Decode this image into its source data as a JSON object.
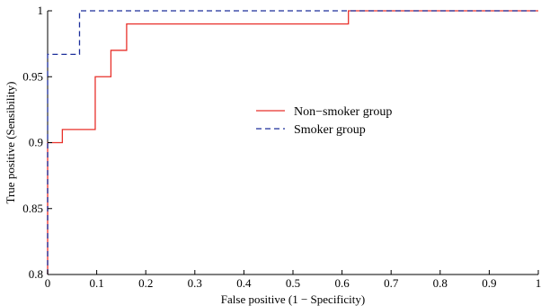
{
  "chart_data": {
    "type": "line",
    "title": "",
    "xlabel": "False positive (1 − Specificity)",
    "ylabel": "True positive (Sensibility)",
    "xlim": [
      0,
      1
    ],
    "ylim": [
      0.8,
      1
    ],
    "xticks": [
      0,
      0.1,
      0.2,
      0.3,
      0.4,
      0.5,
      0.6,
      0.7,
      0.8,
      0.9,
      1
    ],
    "xtick_labels": [
      "0",
      "0.1",
      "0.2",
      "0.3",
      "0.4",
      "0.5",
      "0.6",
      "0.7",
      "0.8",
      "0.9",
      "1"
    ],
    "yticks": [
      0.8,
      0.85,
      0.9,
      0.95,
      1
    ],
    "ytick_labels": [
      "0.8",
      "0.85",
      "0.9",
      "0.95",
      "1"
    ],
    "grid": false,
    "legend_position": "center",
    "series": [
      {
        "name": "Non−smoker group",
        "color": "#e8302a",
        "dash": "solid",
        "x": [
          0,
          0,
          0.03,
          0.03,
          0.097,
          0.097,
          0.129,
          0.129,
          0.161,
          0.161,
          0.613,
          0.613,
          1
        ],
        "y": [
          0.8,
          0.9,
          0.9,
          0.91,
          0.91,
          0.95,
          0.95,
          0.97,
          0.97,
          0.99,
          0.99,
          1,
          1
        ]
      },
      {
        "name": "Smoker group",
        "color": "#1c2e9b",
        "dash": "dashed",
        "x": [
          0,
          0,
          0.065,
          0.065,
          1
        ],
        "y": [
          0.8,
          0.967,
          0.967,
          1,
          1
        ]
      }
    ]
  }
}
